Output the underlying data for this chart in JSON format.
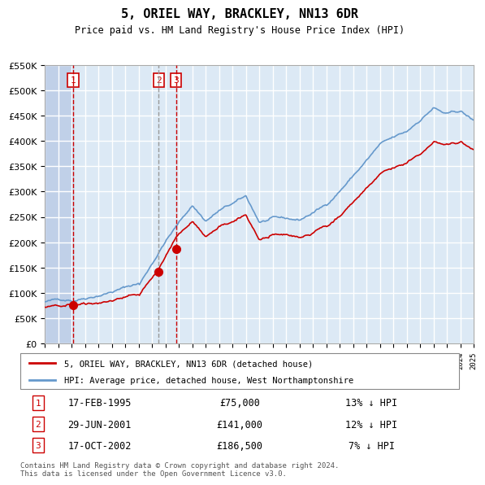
{
  "title": "5, ORIEL WAY, BRACKLEY, NN13 6DR",
  "subtitle": "Price paid vs. HM Land Registry's House Price Index (HPI)",
  "legend_line1": "5, ORIEL WAY, BRACKLEY, NN13 6DR (detached house)",
  "legend_line2": "HPI: Average price, detached house, West Northamptonshire",
  "footer": "Contains HM Land Registry data © Crown copyright and database right 2024.\nThis data is licensed under the Open Government Licence v3.0.",
  "transactions": [
    {
      "num": 1,
      "date": "17-FEB-1995",
      "price": 75000,
      "hpi_diff": "13% ↓ HPI",
      "year": 1995.12
    },
    {
      "num": 2,
      "date": "29-JUN-2001",
      "price": 141000,
      "hpi_diff": "12% ↓ HPI",
      "year": 2001.49
    },
    {
      "num": 3,
      "date": "17-OCT-2002",
      "price": 186500,
      "hpi_diff": "7% ↓ HPI",
      "year": 2002.79
    }
  ],
  "ylim": [
    0,
    550000
  ],
  "yticks": [
    0,
    50000,
    100000,
    150000,
    200000,
    250000,
    300000,
    350000,
    400000,
    450000,
    500000,
    550000
  ],
  "ylabel_format": "£{0}K",
  "background_color": "#dce9f5",
  "plot_bg_color": "#dce9f5",
  "hatch_color": "#c0d0e8",
  "grid_color": "#ffffff",
  "red_line_color": "#cc0000",
  "blue_line_color": "#6699cc",
  "red_dot_color": "#cc0000",
  "dashed_red_color": "#cc0000",
  "dashed_grey_color": "#999999",
  "box_edge_color": "#cc0000",
  "box_text_color": "#cc0000"
}
